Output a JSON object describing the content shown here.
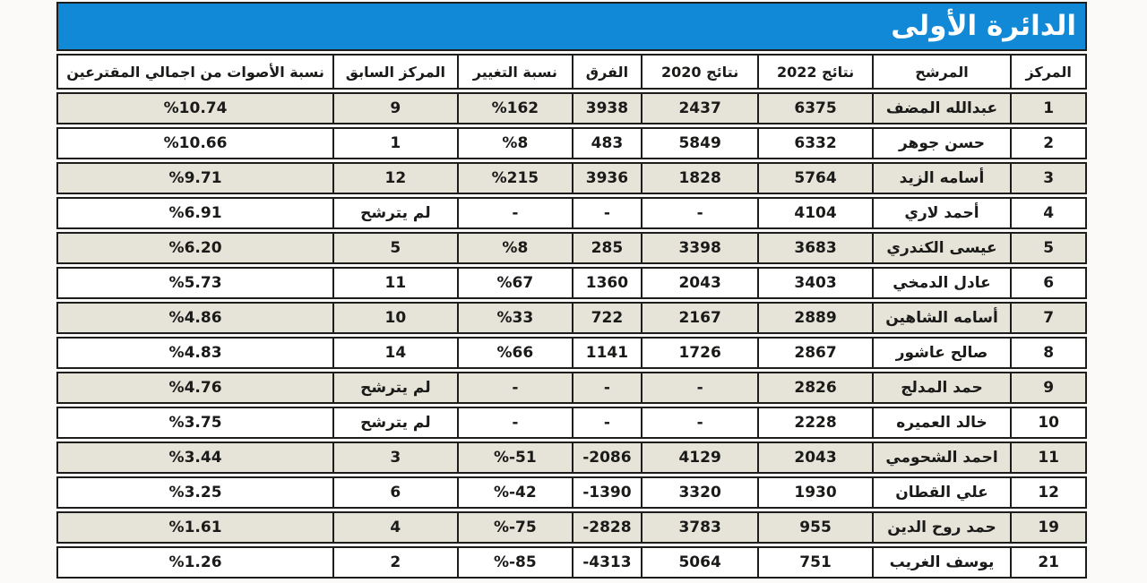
{
  "title_bar": {
    "label": "الدائرة الأولى",
    "background": "#1189d6",
    "text_color": "#ffffff"
  },
  "colors": {
    "page_bg": "#fbfaf8",
    "title_bar_bg": "#1189d6",
    "title_text": "#ffffff",
    "border": "#1d1d1b",
    "shaded_row_bg": "#e6e3d9",
    "row_bg": "#ffffff",
    "text": "#1a1a18"
  },
  "table": {
    "columns": [
      {
        "id": "rank",
        "label": "المركز"
      },
      {
        "id": "candidate",
        "label": "المرشح"
      },
      {
        "id": "r2022",
        "label": "نتائج 2022"
      },
      {
        "id": "r2020",
        "label": "نتائج 2020"
      },
      {
        "id": "diff",
        "label": "الفرق"
      },
      {
        "id": "change",
        "label": "نسبة التغيير"
      },
      {
        "id": "prev",
        "label": "المركز السابق"
      },
      {
        "id": "votes",
        "label": "نسبة الأصوات من اجمالي المقترعين"
      }
    ],
    "rows": [
      {
        "rank": "1",
        "candidate": "عبدالله المضف",
        "r2022": "6375",
        "r2020": "2437",
        "diff": "3938",
        "change": "%162",
        "prev": "9",
        "votes": "%10.74"
      },
      {
        "rank": "2",
        "candidate": "حسن جوهر",
        "r2022": "6332",
        "r2020": "5849",
        "diff": "483",
        "change": "%8",
        "prev": "1",
        "votes": "%10.66"
      },
      {
        "rank": "3",
        "candidate": "أسامه الزيد",
        "r2022": "5764",
        "r2020": "1828",
        "diff": "3936",
        "change": "%215",
        "prev": "12",
        "votes": "%9.71"
      },
      {
        "rank": "4",
        "candidate": "أحمد لاري",
        "r2022": "4104",
        "r2020": "-",
        "diff": "-",
        "change": "-",
        "prev": "لم يترشح",
        "votes": "%6.91"
      },
      {
        "rank": "5",
        "candidate": "عيسى الكندري",
        "r2022": "3683",
        "r2020": "3398",
        "diff": "285",
        "change": "%8",
        "prev": "5",
        "votes": "%6.20"
      },
      {
        "rank": "6",
        "candidate": "عادل الدمخي",
        "r2022": "3403",
        "r2020": "2043",
        "diff": "1360",
        "change": "%67",
        "prev": "11",
        "votes": "%5.73"
      },
      {
        "rank": "7",
        "candidate": "أسامه الشاهين",
        "r2022": "2889",
        "r2020": "2167",
        "diff": "722",
        "change": "%33",
        "prev": "10",
        "votes": "%4.86"
      },
      {
        "rank": "8",
        "candidate": "صالح عاشور",
        "r2022": "2867",
        "r2020": "1726",
        "diff": "1141",
        "change": "%66",
        "prev": "14",
        "votes": "%4.83"
      },
      {
        "rank": "9",
        "candidate": "حمد المدلج",
        "r2022": "2826",
        "r2020": "-",
        "diff": "-",
        "change": "-",
        "prev": "لم يترشح",
        "votes": "%4.76"
      },
      {
        "rank": "10",
        "candidate": "خالد العميره",
        "r2022": "2228",
        "r2020": "-",
        "diff": "-",
        "change": "-",
        "prev": "لم يترشح",
        "votes": "%3.75"
      },
      {
        "rank": "11",
        "candidate": "احمد الشحومي",
        "r2022": "2043",
        "r2020": "4129",
        "diff": "-2086",
        "change": "%-51",
        "prev": "3",
        "votes": "%3.44"
      },
      {
        "rank": "12",
        "candidate": "علي القطان",
        "r2022": "1930",
        "r2020": "3320",
        "diff": "-1390",
        "change": "%-42",
        "prev": "6",
        "votes": "%3.25"
      },
      {
        "rank": "19",
        "candidate": "حمد روح الدين",
        "r2022": "955",
        "r2020": "3783",
        "diff": "-2828",
        "change": "%-75",
        "prev": "4",
        "votes": "%1.61"
      },
      {
        "rank": "21",
        "candidate": "يوسف الغريب",
        "r2022": "751",
        "r2020": "5064",
        "diff": "-4313",
        "change": "%-85",
        "prev": "2",
        "votes": "%1.26"
      }
    ],
    "shading": "odd rows shaded beige, even rows white",
    "not_candidate_label": "لم يترشح",
    "empty_cell": "-"
  },
  "chart_data": {
    "type": "table",
    "title": "الدائرة الأولى",
    "columns_rtl_order": [
      "المركز",
      "المرشح",
      "نتائج 2022",
      "نتائج 2020",
      "الفرق",
      "نسبة التغيير",
      "المركز السابق",
      "نسبة الأصوات من اجمالي المقترعين"
    ],
    "rows": [
      [
        "1",
        "عبدالله المضف",
        "6375",
        "2437",
        "3938",
        "%162",
        "9",
        "%10.74"
      ],
      [
        "2",
        "حسن جوهر",
        "6332",
        "5849",
        "483",
        "%8",
        "1",
        "%10.66"
      ],
      [
        "3",
        "أسامه الزيد",
        "5764",
        "1828",
        "3936",
        "%215",
        "12",
        "%9.71"
      ],
      [
        "4",
        "أحمد لاري",
        "4104",
        "-",
        "-",
        "-",
        "لم يترشح",
        "%6.91"
      ],
      [
        "5",
        "عيسى الكندري",
        "3683",
        "3398",
        "285",
        "%8",
        "5",
        "%6.20"
      ],
      [
        "6",
        "عادل الدمخي",
        "3403",
        "2043",
        "1360",
        "%67",
        "11",
        "%5.73"
      ],
      [
        "7",
        "أسامه الشاهين",
        "2889",
        "2167",
        "722",
        "%33",
        "10",
        "%4.86"
      ],
      [
        "8",
        "صالح عاشور",
        "2867",
        "1726",
        "1141",
        "%66",
        "14",
        "%4.83"
      ],
      [
        "9",
        "حمد المدلج",
        "2826",
        "-",
        "-",
        "-",
        "لم يترشح",
        "%4.76"
      ],
      [
        "10",
        "خالد العميره",
        "2228",
        "-",
        "-",
        "-",
        "لم يترشح",
        "%3.75"
      ],
      [
        "11",
        "احمد الشحومي",
        "2043",
        "4129",
        "-2086",
        "%-51",
        "3",
        "%3.44"
      ],
      [
        "12",
        "علي القطان",
        "1930",
        "3320",
        "-1390",
        "%-42",
        "6",
        "%3.25"
      ],
      [
        "19",
        "حمد روح الدين",
        "955",
        "3783",
        "-2828",
        "%-75",
        "4",
        "%1.61"
      ],
      [
        "21",
        "يوسف الغريب",
        "751",
        "5064",
        "-4313",
        "%-85",
        "2",
        "%1.26"
      ]
    ]
  }
}
